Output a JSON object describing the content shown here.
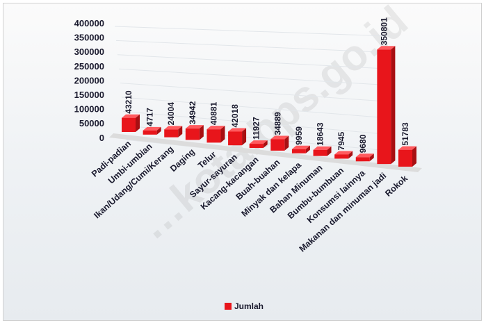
{
  "watermark": "…kota.bps.go.id",
  "colors": {
    "bar": "#e8151b",
    "bar_side": "#a80f12",
    "bar_top": "#ff5a5e",
    "floor": "#dcdcdc"
  },
  "chart_data": {
    "type": "bar",
    "categories": [
      "Padi-padian",
      "Umbi-umbian",
      "Ikan/Udang/Cumi/Kerang",
      "Daging",
      "Telur",
      "Sayur-sayuran",
      "Kacang-kacangan",
      "Buah-buahan",
      "Minyak dan kelapa",
      "Bahan Minuman",
      "Bumbu-bumbuan",
      "Konsumsi lainnya",
      "Makanan dan minuman jadi",
      "Rokok"
    ],
    "series": [
      {
        "name": "Jumlah",
        "values": [
          43210,
          4717,
          24004,
          34942,
          40881,
          42018,
          11927,
          34889,
          9959,
          18643,
          7945,
          9680,
          350801,
          51783
        ]
      }
    ],
    "yticks": [
      "400000",
      "350000",
      "300000",
      "250000",
      "200000",
      "150000",
      "100000",
      "50000",
      "0"
    ],
    "ylim": [
      0,
      400000
    ],
    "legend_position": "bottom",
    "grid": true
  }
}
